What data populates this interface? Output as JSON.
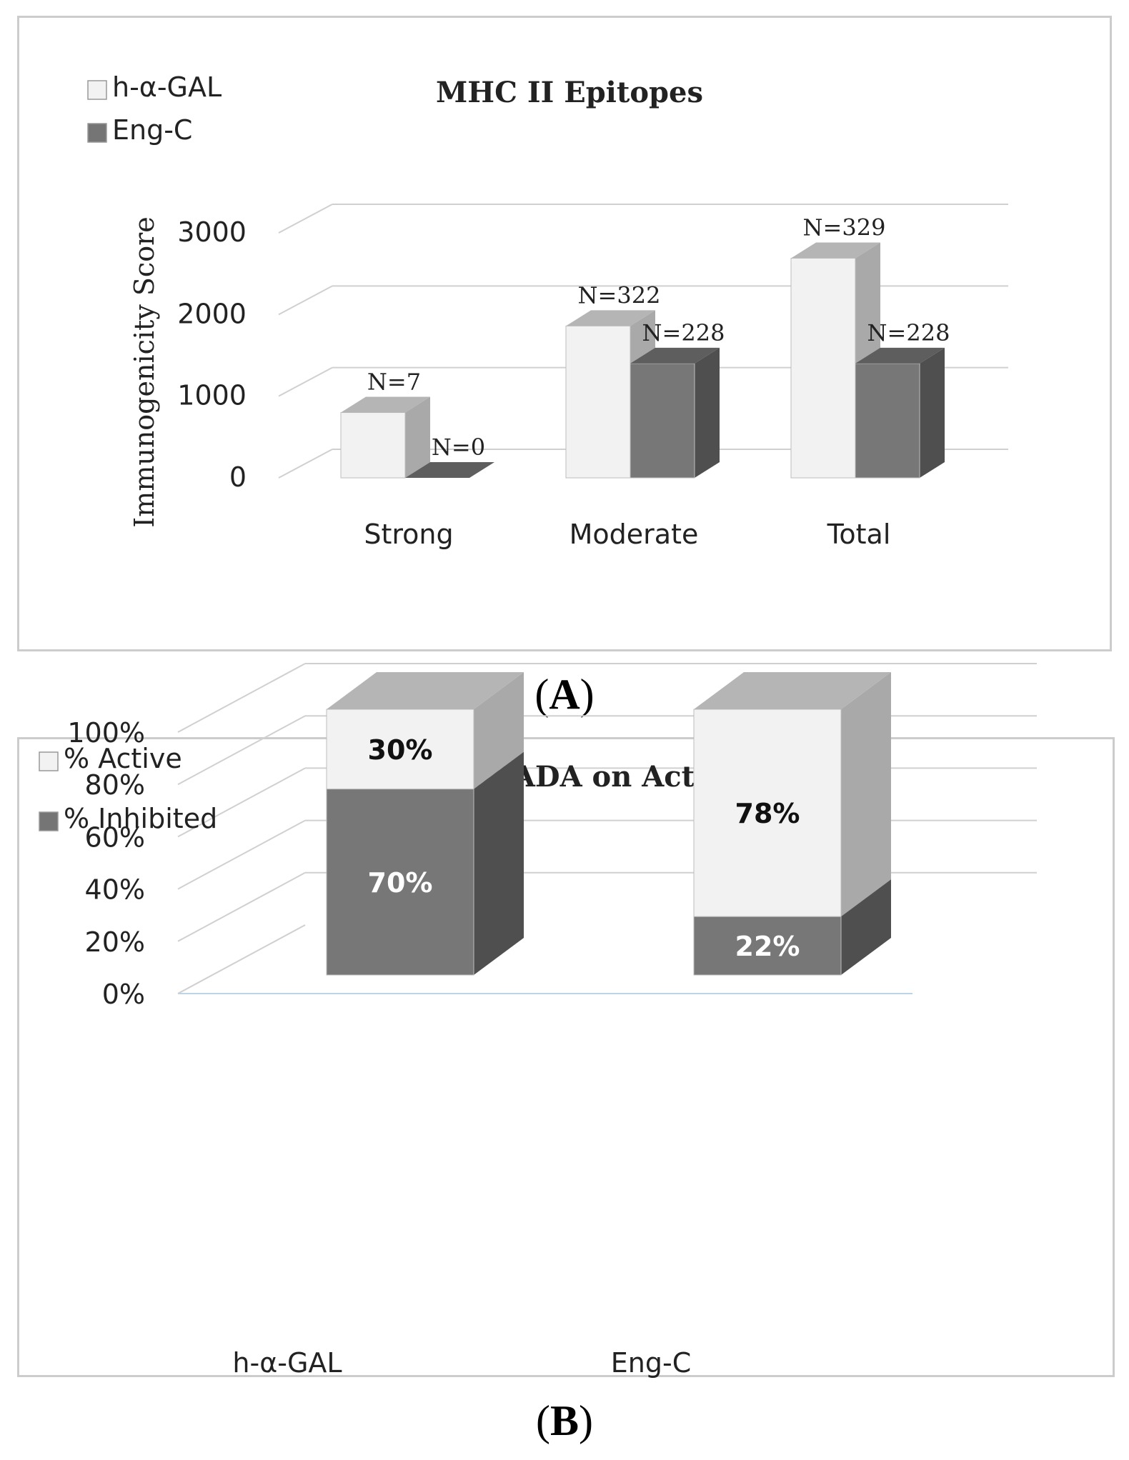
{
  "panels": [
    {
      "id": "A",
      "label": "A",
      "chart_data": {
        "type": "bar",
        "title": "MHC II Epitopes",
        "xlabel": "",
        "ylabel": "Immunogenicity Score",
        "categories": [
          "Strong",
          "Moderate",
          "Total"
        ],
        "series": [
          {
            "name": "h-α-GAL",
            "values": [
              800,
              1860,
              2690
            ],
            "labels": [
              "N=7",
              "N=322",
              "N=329"
            ],
            "color": "#f2f2f2"
          },
          {
            "name": "Eng-C",
            "values": [
              0,
              1400,
              1400
            ],
            "labels": [
              "N=0",
              "N=228",
              "N=228"
            ],
            "color": "#757575"
          }
        ],
        "ylim": [
          0,
          3000
        ],
        "yticks": [
          "0",
          "1000",
          "2000",
          "3000"
        ],
        "grid": true,
        "legend_position": "top-left"
      }
    },
    {
      "id": "B",
      "label": "B",
      "chart_data": {
        "type": "bar",
        "stacked": true,
        "title": "Effect of ADA on Activity",
        "xlabel": "",
        "ylabel": "",
        "categories": [
          "h-α-GAL",
          "Eng-C"
        ],
        "series": [
          {
            "name": "% Inhibited",
            "values": [
              70,
              22
            ],
            "labels": [
              "70%",
              "22%"
            ],
            "color": "#757575"
          },
          {
            "name": "% Active",
            "values": [
              30,
              78
            ],
            "labels": [
              "30%",
              "78%"
            ],
            "color": "#f2f2f2"
          }
        ],
        "ylim": [
          0,
          100
        ],
        "yticks": [
          "0%",
          "20%",
          "40%",
          "60%",
          "80%",
          "100%"
        ],
        "grid": true,
        "legend_position": "top-left"
      }
    }
  ]
}
